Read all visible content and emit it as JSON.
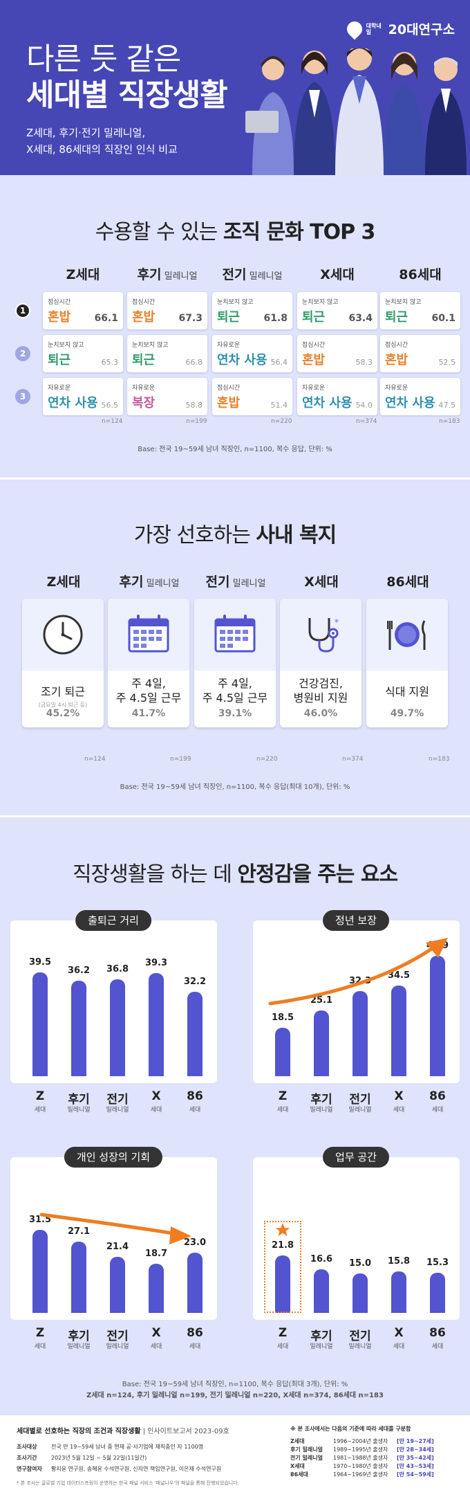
{
  "header": {
    "logo_small": "대학내일",
    "logo_text": "20대연구소",
    "title_line1": "다른 듯 같은",
    "title_line2": "세대별 직장생활",
    "subtitle_line1": "Z세대, 후기·전기 밀레니얼,",
    "subtitle_line2": "X세대, 86세대의 직장인 인식 비교"
  },
  "culture": {
    "title_normal": "수용할 수 있는 ",
    "title_bold": "조직 문화 TOP 3",
    "generations": [
      {
        "name": "Z세대",
        "suffix": ""
      },
      {
        "name": "후기",
        "suffix": " 밀레니얼"
      },
      {
        "name": "전기",
        "suffix": " 밀레니얼"
      },
      {
        "name": "X세대",
        "suffix": ""
      },
      {
        "name": "86세대",
        "suffix": ""
      }
    ],
    "ranks": [
      "1",
      "2",
      "3"
    ],
    "rows": [
      [
        {
          "label": "점심시간",
          "text": "혼밥",
          "value": "66.1"
        },
        {
          "label": "점심시간",
          "text": "혼밥",
          "value": "67.3"
        },
        {
          "label": "눈치보지 않고",
          "text": "퇴근",
          "value": "61.8"
        },
        {
          "label": "눈치보지 않고",
          "text": "퇴근",
          "value": "63.4"
        },
        {
          "label": "눈치보지 않고",
          "text": "퇴근",
          "value": "60.1"
        }
      ],
      [
        {
          "label": "눈치보지 않고",
          "text": "퇴근",
          "value": "65.3"
        },
        {
          "label": "눈치보지 않고",
          "text": "퇴근",
          "value": "66.8"
        },
        {
          "label": "자유로운",
          "text": "연차 사용",
          "value": "56.4"
        },
        {
          "label": "점심시간",
          "text": "혼밥",
          "value": "58.3"
        },
        {
          "label": "점심시간",
          "text": "혼밥",
          "value": "52.5"
        }
      ],
      [
        {
          "label": "자유로운",
          "text": "연차 사용",
          "value": "56.5"
        },
        {
          "label": "자유로운",
          "text": "복장",
          "value": "58.8"
        },
        {
          "label": "점심시간",
          "text": "혼밥",
          "value": "51.4"
        },
        {
          "label": "자유로운",
          "text": "연차 사용",
          "value": "54.0"
        },
        {
          "label": "자유로운",
          "text": "연차 사용",
          "value": "47.5"
        }
      ]
    ],
    "n_counts": [
      "n=124",
      "n=199",
      "n=220",
      "n=374",
      "n=183"
    ],
    "base": "Base: 전국 19~59세 남녀 직장인, n=1100, 복수 응답, 단위: %",
    "colors": {
      "혼밥": "#e8812a",
      "퇴근": "#2f9a6a",
      "연차 사용": "#2f8fae",
      "복장": "#c25a9a"
    }
  },
  "welfare": {
    "title_normal": "가장 선호하는 ",
    "title_bold": "사내 복지",
    "cards": [
      {
        "icon": "clock-icon",
        "main1": "조기 퇴근",
        "main2": "",
        "note": "(금요일 4시 퇴근 등)",
        "pct": "45.2%"
      },
      {
        "icon": "calendar-icon",
        "main1": "주 4일,",
        "main2": "주 4.5일 근무",
        "note": "",
        "pct": "41.7%"
      },
      {
        "icon": "calendar-icon",
        "main1": "주 4일,",
        "main2": "주 4.5일 근무",
        "note": "",
        "pct": "39.1%"
      },
      {
        "icon": "stethoscope-icon",
        "main1": "건강검진,",
        "main2": "병원비 지원",
        "note": "",
        "pct": "46.0%"
      },
      {
        "icon": "meal-icon",
        "main1": "식대 지원",
        "main2": "",
        "note": "",
        "pct": "49.7%"
      }
    ],
    "n_counts": [
      "n=124",
      "n=199",
      "n=220",
      "n=374",
      "n=183"
    ],
    "base": "Base: 전국 19~59세 남녀 직장인, n=1100, 복수 응답(최대 10개), 단위: %"
  },
  "stability": {
    "title_normal": "직장생활을 하는 데 ",
    "title_bold": "안정감을 주는 요소",
    "categories": [
      {
        "big": "Z",
        "small": "세대"
      },
      {
        "big": "후기",
        "small": "밀레니얼"
      },
      {
        "big": "전기",
        "small": "밀레니얼"
      },
      {
        "big": "X",
        "small": "세대"
      },
      {
        "big": "86",
        "small": "세대"
      }
    ],
    "base_line1": "Base: 전국 19~59세 남녀 직장인, n=1100, 복수 응답(최대 3개), 단위: %",
    "base_line2": "Z세대 n=124, 후기 밀레니얼 n=199, 전기 밀레니얼 n=220, X세대 n=374, 86세대 n=183"
  },
  "chart_data": [
    {
      "type": "bar",
      "title": "출퇴근 거리",
      "categories": [
        "Z세대",
        "후기 밀레니얼",
        "전기 밀레니얼",
        "X세대",
        "86세대"
      ],
      "values": [
        39.5,
        36.2,
        36.8,
        39.3,
        32.2
      ],
      "ylim": [
        0,
        50
      ]
    },
    {
      "type": "bar",
      "title": "정년 보장",
      "categories": [
        "Z세대",
        "후기 밀레니얼",
        "전기 밀레니얼",
        "X세대",
        "86세대"
      ],
      "values": [
        18.5,
        25.1,
        32.3,
        34.5,
        45.9
      ],
      "ylim": [
        0,
        50
      ]
    },
    {
      "type": "bar",
      "title": "개인 성장의 기회",
      "categories": [
        "Z세대",
        "후기 밀레니얼",
        "전기 밀레니얼",
        "X세대",
        "86세대"
      ],
      "values": [
        31.5,
        27.1,
        21.4,
        18.7,
        23.0
      ],
      "ylim": [
        0,
        50
      ]
    },
    {
      "type": "bar",
      "title": "업무 공간",
      "categories": [
        "Z세대",
        "후기 밀레니얼",
        "전기 밀레니얼",
        "X세대",
        "86세대"
      ],
      "values": [
        21.8,
        16.6,
        15.0,
        15.8,
        15.3
      ],
      "ylim": [
        0,
        50
      ]
    }
  ],
  "footer": {
    "title": "세대별로 선호하는 직장의 조건과 직장생활",
    "title_sub": " | 인사이트보고서 2023-09호",
    "rows": [
      {
        "k": "조사대상",
        "v": "전국 만 19~59세 남녀 중 현재 공·사기업에 재직중인 자 1100명"
      },
      {
        "k": "조사기간",
        "v": "2023년 5월 12일 ~ 5월 22일(11일간)"
      },
      {
        "k": "연구참여자",
        "v": "황지윤 연구원, 송혜윤 수석연구원, 신지연 책임연구원, 이은재 수석연구원"
      }
    ],
    "note": "* 본 조사는 글로벌 기업 데이터스프링이 운영하는 한국 패널 서비스 '패널나우'의 패널을 통해 진행되었습니다.",
    "gen_title": "※ 본 조사에서는 다음의 기준에 따라 세대를 구분함",
    "gen_rows": [
      {
        "k": "Z세대",
        "v": "1996~2004년 출생자",
        "a": "[만 19~27세]"
      },
      {
        "k": "후기 밀레니얼",
        "v": "1989~1995년 출생자",
        "a": "[만 28~34세]"
      },
      {
        "k": "전기 밀레니얼",
        "v": "1981~1988년 출생자",
        "a": "[만 35~42세]"
      },
      {
        "k": "X세대",
        "v": "1970~1980년 출생자",
        "a": "[만 43~53세]"
      },
      {
        "k": "86세대",
        "v": "1964~1969년 출생자",
        "a": "[만 54~59세]"
      }
    ]
  }
}
